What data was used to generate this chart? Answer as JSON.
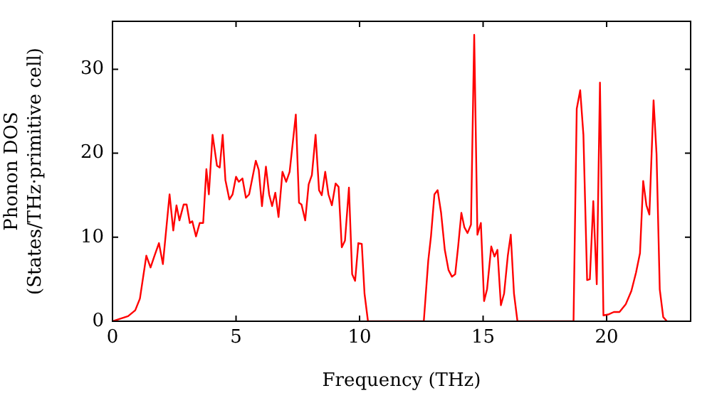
{
  "chart_data": {
    "type": "line",
    "xlabel": "Frequency (THz)",
    "ylabel": "Phonon DOS\n(States/THz·primitive cell)",
    "x": [
      0,
      0.63,
      0.92,
      1.11,
      1.37,
      1.54,
      1.69,
      1.88,
      2.04,
      2.31,
      2.46,
      2.59,
      2.71,
      2.88,
      3.0,
      3.13,
      3.23,
      3.38,
      3.53,
      3.67,
      3.8,
      3.9,
      4.05,
      4.23,
      4.34,
      4.46,
      4.57,
      4.73,
      4.86,
      5.0,
      5.11,
      5.26,
      5.4,
      5.53,
      5.8,
      5.92,
      6.05,
      6.21,
      6.34,
      6.46,
      6.59,
      6.72,
      6.88,
      7.03,
      7.17,
      7.42,
      7.55,
      7.65,
      7.8,
      7.94,
      8.07,
      8.22,
      8.36,
      8.47,
      8.61,
      8.74,
      8.88,
      9.03,
      9.15,
      9.28,
      9.41,
      9.57,
      9.7,
      9.82,
      9.95,
      10.09,
      10.2,
      10.34,
      12.6,
      12.78,
      12.89,
      13.03,
      13.16,
      13.3,
      13.45,
      13.6,
      13.74,
      13.87,
      13.99,
      14.12,
      14.24,
      14.37,
      14.51,
      14.64,
      14.77,
      14.91,
      15.04,
      15.16,
      15.33,
      15.46,
      15.58,
      15.72,
      15.85,
      16.0,
      16.12,
      16.25,
      16.39,
      18.66,
      18.79,
      18.93,
      19.06,
      19.21,
      19.32,
      19.46,
      19.6,
      19.73,
      19.87,
      20.06,
      20.29,
      20.52,
      20.77,
      21.0,
      21.19,
      21.35,
      21.48,
      21.61,
      21.73,
      21.9,
      22.02,
      22.15,
      22.29,
      22.44
    ],
    "series": [
      {
        "color": "#ff0000",
        "values": [
          0,
          0.6,
          1.3,
          2.7,
          7.8,
          6.4,
          7.7,
          9.3,
          6.8,
          15.1,
          10.8,
          13.8,
          12.0,
          13.9,
          13.9,
          11.7,
          11.9,
          10.1,
          11.7,
          11.7,
          18.1,
          15.1,
          22.2,
          18.5,
          18.3,
          22.2,
          16.8,
          14.5,
          15.1,
          17.2,
          16.6,
          17.0,
          14.7,
          15.1,
          19.1,
          18.0,
          13.7,
          18.4,
          15.1,
          13.7,
          15.3,
          12.4,
          17.8,
          16.6,
          17.8,
          24.6,
          14.1,
          13.9,
          12.0,
          16.3,
          17.4,
          22.2,
          15.6,
          15.0,
          17.8,
          15.1,
          13.8,
          16.4,
          16.0,
          8.8,
          9.6,
          15.9,
          5.6,
          4.8,
          9.3,
          9.2,
          3.3,
          0,
          0,
          7.2,
          10.1,
          15.1,
          15.6,
          12.9,
          8.5,
          6.1,
          5.3,
          5.6,
          8.9,
          12.9,
          11.2,
          10.5,
          11.5,
          34.1,
          10.3,
          11.7,
          2.4,
          3.8,
          8.9,
          7.7,
          8.5,
          1.9,
          3.3,
          7.8,
          10.3,
          3.3,
          0,
          0,
          25.3,
          27.5,
          22.2,
          4.9,
          5.0,
          14.3,
          4.4,
          28.4,
          0.7,
          0.8,
          1.1,
          1.1,
          2.0,
          3.6,
          5.8,
          8.1,
          16.7,
          13.8,
          12.7,
          26.3,
          19.9,
          3.8,
          0.5,
          0
        ]
      }
    ],
    "xlim": [
      0,
      23.4
    ],
    "ylim": [
      0,
      35.7
    ],
    "xticks": [
      0,
      5,
      10,
      15,
      20
    ],
    "yticks": [
      0,
      10,
      20,
      30
    ],
    "grid": false,
    "legend": false,
    "marker": "none",
    "line_style": "solid"
  }
}
